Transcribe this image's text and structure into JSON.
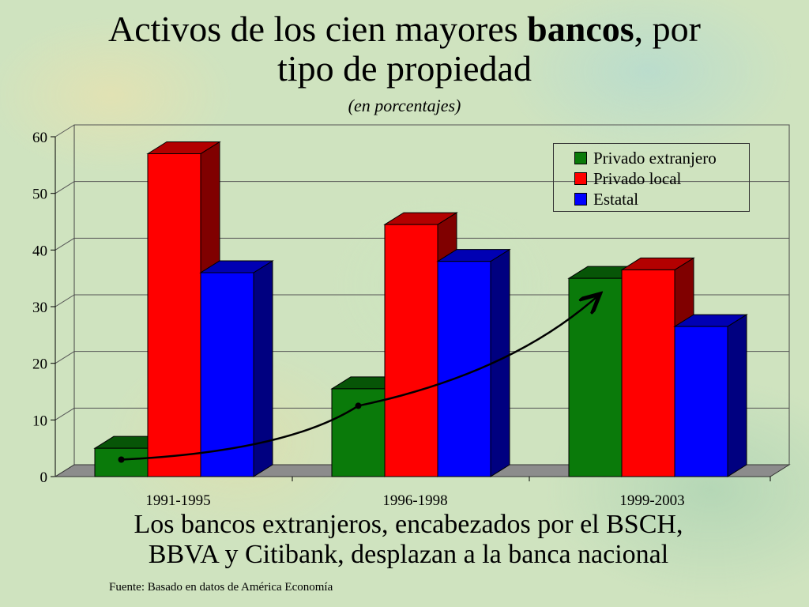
{
  "slide": {
    "title_part1": "Activos de los cien mayores ",
    "title_bold": "bancos",
    "title_part2": ", por",
    "title_line2": "tipo de propiedad",
    "subtitle": "(en porcentajes)",
    "caption_line1": "Los bancos extranjeros, encabezados por el BSCH,",
    "caption_line2": "BBVA y Citibank, desplazan a la banca nacional",
    "source": "Fuente: Basado en datos de América Economía"
  },
  "chart_data": {
    "type": "bar",
    "categories": [
      "1991-1995",
      "1996-1998",
      "1999-2003"
    ],
    "series": [
      {
        "name": "Privado extranjero",
        "values": [
          5,
          15.5,
          35
        ],
        "color": "#0a7a0a"
      },
      {
        "name": "Privado local",
        "values": [
          57,
          44.5,
          36.5
        ],
        "color": "#ff0000"
      },
      {
        "name": "Estatal",
        "values": [
          36,
          38,
          26.5
        ],
        "color": "#0000ff"
      }
    ],
    "ylim": [
      0,
      60
    ],
    "yticks": [
      "0",
      "10",
      "20",
      "30",
      "40",
      "50",
      "60"
    ],
    "grid": true,
    "legend_position": "top-right",
    "three_d": true,
    "trend_arrow": {
      "series": "Privado extranjero",
      "points": [
        3,
        12.5,
        32
      ]
    }
  }
}
